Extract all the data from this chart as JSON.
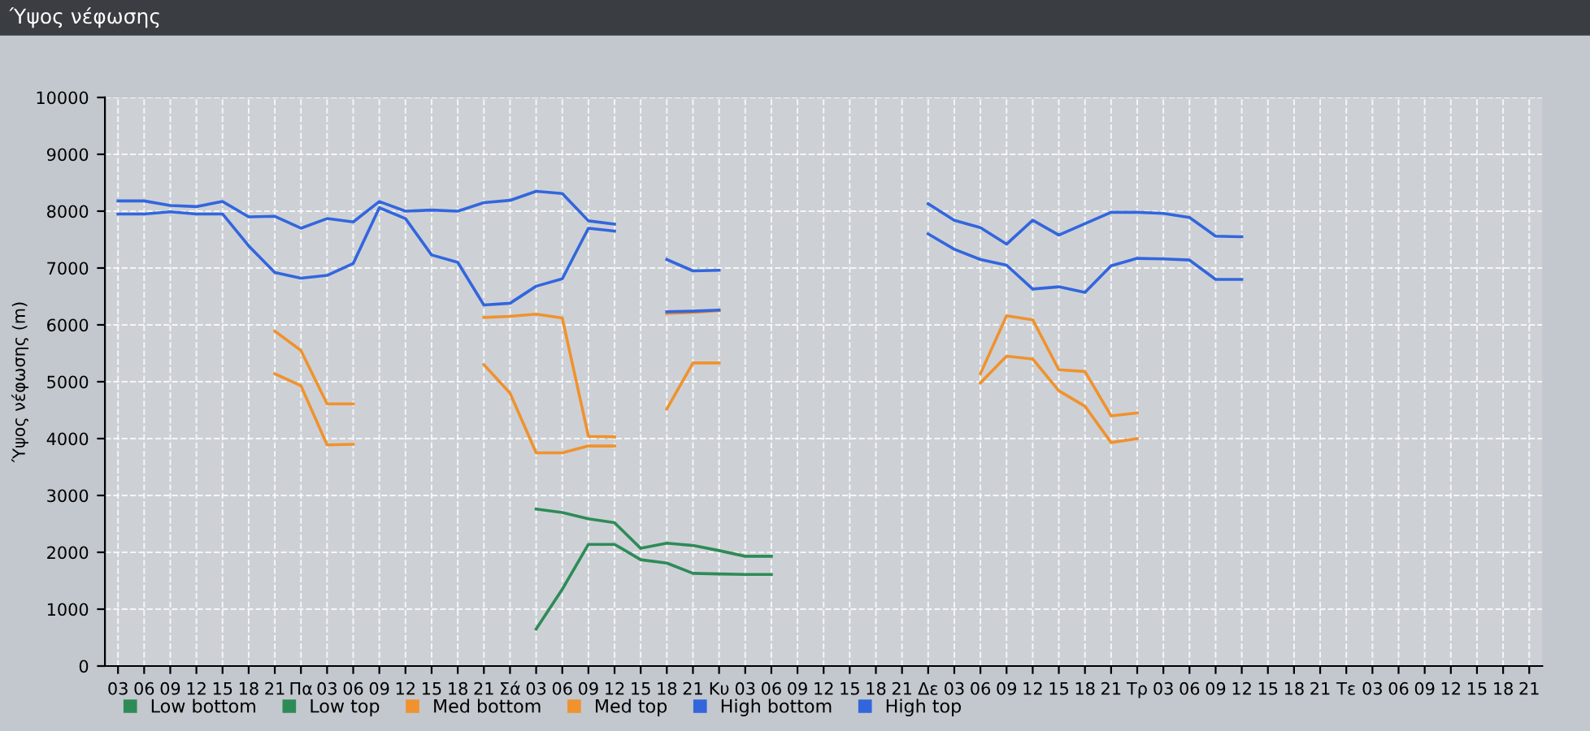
{
  "chart_data": {
    "type": "line",
    "title": "Ύψος νέφωσης",
    "ylabel": "Ύψος νέφωσης (m)",
    "categories": [
      "03",
      "06",
      "09",
      "12",
      "15",
      "18",
      "21",
      "Πα",
      "03",
      "06",
      "09",
      "12",
      "15",
      "18",
      "21",
      "Σά",
      "03",
      "06",
      "09",
      "12",
      "15",
      "18",
      "21",
      "Κυ",
      "03",
      "06",
      "09",
      "12",
      "15",
      "18",
      "21",
      "Δε",
      "03",
      "06",
      "09",
      "12",
      "15",
      "18",
      "21",
      "Τρ",
      "03",
      "06",
      "09",
      "12",
      "15",
      "18",
      "21",
      "Τε",
      "03",
      "06",
      "09",
      "12",
      "15",
      "18",
      "21"
    ],
    "ylim": [
      0,
      10000
    ],
    "yticks": [
      0,
      1000,
      2000,
      3000,
      4000,
      5000,
      6000,
      7000,
      8000,
      9000,
      10000
    ],
    "grid": true,
    "legend": "bottom left",
    "marker": "none",
    "line_style": "solid",
    "series": [
      {
        "name": "Low bottom",
        "color": "#2e8b57",
        "values": [
          null,
          null,
          null,
          null,
          null,
          null,
          null,
          null,
          null,
          null,
          null,
          null,
          null,
          null,
          null,
          null,
          650,
          1350,
          2140,
          2140,
          1870,
          1810,
          1630,
          1620,
          1610,
          1610,
          null,
          null,
          null,
          null,
          null,
          null,
          null,
          null,
          null,
          null,
          null,
          null,
          null,
          null,
          null,
          null,
          null,
          null,
          null,
          null,
          null,
          null,
          null,
          null,
          null,
          null,
          null,
          null,
          null
        ]
      },
      {
        "name": "Low top",
        "color": "#2e8b57",
        "values": [
          null,
          null,
          null,
          null,
          null,
          null,
          null,
          null,
          null,
          null,
          null,
          null,
          null,
          null,
          null,
          null,
          2760,
          2700,
          2590,
          2520,
          2070,
          2160,
          2120,
          2030,
          1930,
          1930,
          null,
          null,
          null,
          null,
          null,
          null,
          null,
          null,
          null,
          null,
          null,
          null,
          null,
          null,
          null,
          null,
          null,
          null,
          null,
          null,
          null,
          null,
          null,
          null,
          null,
          null,
          null,
          null,
          null
        ]
      },
      {
        "name": "Med bottom",
        "color": "#f0922e",
        "values": [
          null,
          null,
          null,
          null,
          null,
          null,
          5140,
          4930,
          3890,
          3900,
          null,
          null,
          null,
          null,
          5300,
          4800,
          3750,
          3750,
          3870,
          3870,
          null,
          4520,
          5330,
          5330,
          null,
          null,
          null,
          null,
          null,
          null,
          null,
          null,
          null,
          4980,
          5450,
          5400,
          4840,
          4570,
          3930,
          4000,
          null,
          null,
          null,
          null,
          null,
          null,
          null,
          null,
          null,
          null,
          null,
          null,
          null,
          null,
          null
        ]
      },
      {
        "name": "Med top",
        "color": "#f0922e",
        "values": [
          null,
          null,
          null,
          null,
          null,
          null,
          5890,
          5550,
          4610,
          4610,
          null,
          null,
          null,
          null,
          6130,
          6150,
          6190,
          6120,
          4040,
          4030,
          null,
          6200,
          6220,
          6250,
          null,
          null,
          null,
          null,
          null,
          null,
          null,
          null,
          null,
          5140,
          6160,
          6090,
          5210,
          5180,
          4400,
          4450,
          null,
          null,
          null,
          null,
          null,
          null,
          null,
          null,
          null,
          null,
          null,
          null,
          null,
          null,
          null
        ]
      },
      {
        "name": "High bottom",
        "color": "#3366dd",
        "values": [
          7950,
          7950,
          7990,
          7950,
          7950,
          7390,
          6920,
          6820,
          6870,
          7080,
          8060,
          7870,
          7230,
          7100,
          6350,
          6380,
          6680,
          6810,
          7700,
          7650,
          null,
          6230,
          6240,
          6260,
          null,
          null,
          null,
          null,
          null,
          null,
          null,
          7600,
          7330,
          7150,
          7050,
          6630,
          6670,
          6570,
          7040,
          7170,
          7160,
          7140,
          6800,
          6800,
          null,
          null,
          null,
          null,
          null,
          null,
          null,
          null,
          null,
          null,
          null
        ]
      },
      {
        "name": "High top",
        "color": "#3366dd",
        "values": [
          8180,
          8180,
          8100,
          8080,
          8170,
          7900,
          7910,
          7700,
          7870,
          7810,
          8170,
          8000,
          8020,
          8000,
          8150,
          8190,
          8350,
          8310,
          7830,
          7770,
          null,
          7150,
          6950,
          6960,
          null,
          null,
          null,
          null,
          null,
          null,
          null,
          8130,
          7840,
          7710,
          7420,
          7840,
          7580,
          7780,
          7980,
          7980,
          7960,
          7890,
          7560,
          7550,
          null,
          null,
          null,
          null,
          null,
          null,
          null,
          null,
          null,
          null,
          null
        ]
      }
    ]
  }
}
